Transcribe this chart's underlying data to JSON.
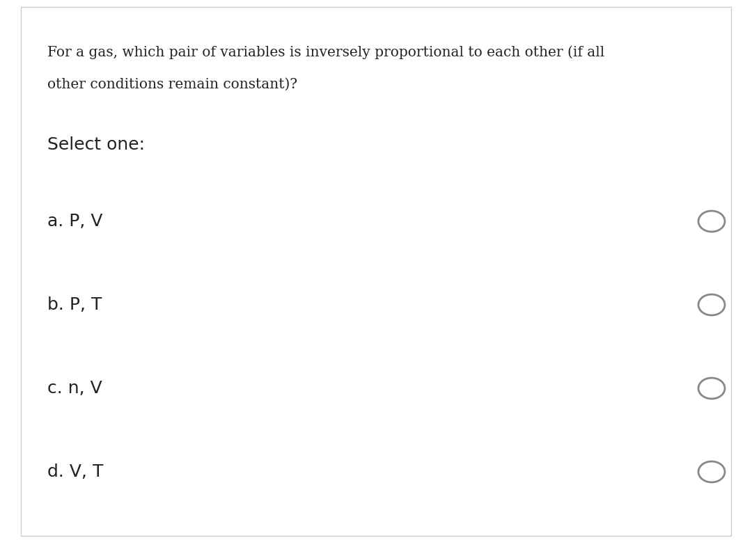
{
  "background_color": "#ffffff",
  "border_color": "#cccccc",
  "question_line1": "For a gas, which pair of variables is inversely proportional to each other (if all",
  "question_line2": "other conditions remain constant)?",
  "select_label": "Select one:",
  "options": [
    {
      "label": "a. P, V"
    },
    {
      "label": "b. P, T"
    },
    {
      "label": "c. n, V"
    },
    {
      "label": "d. V, T"
    }
  ],
  "question_fontsize": 14.5,
  "select_fontsize": 18,
  "option_fontsize": 18,
  "text_color": "#222222",
  "circle_color": "#888888",
  "fig_width": 10.8,
  "fig_height": 7.86,
  "dpi": 100
}
